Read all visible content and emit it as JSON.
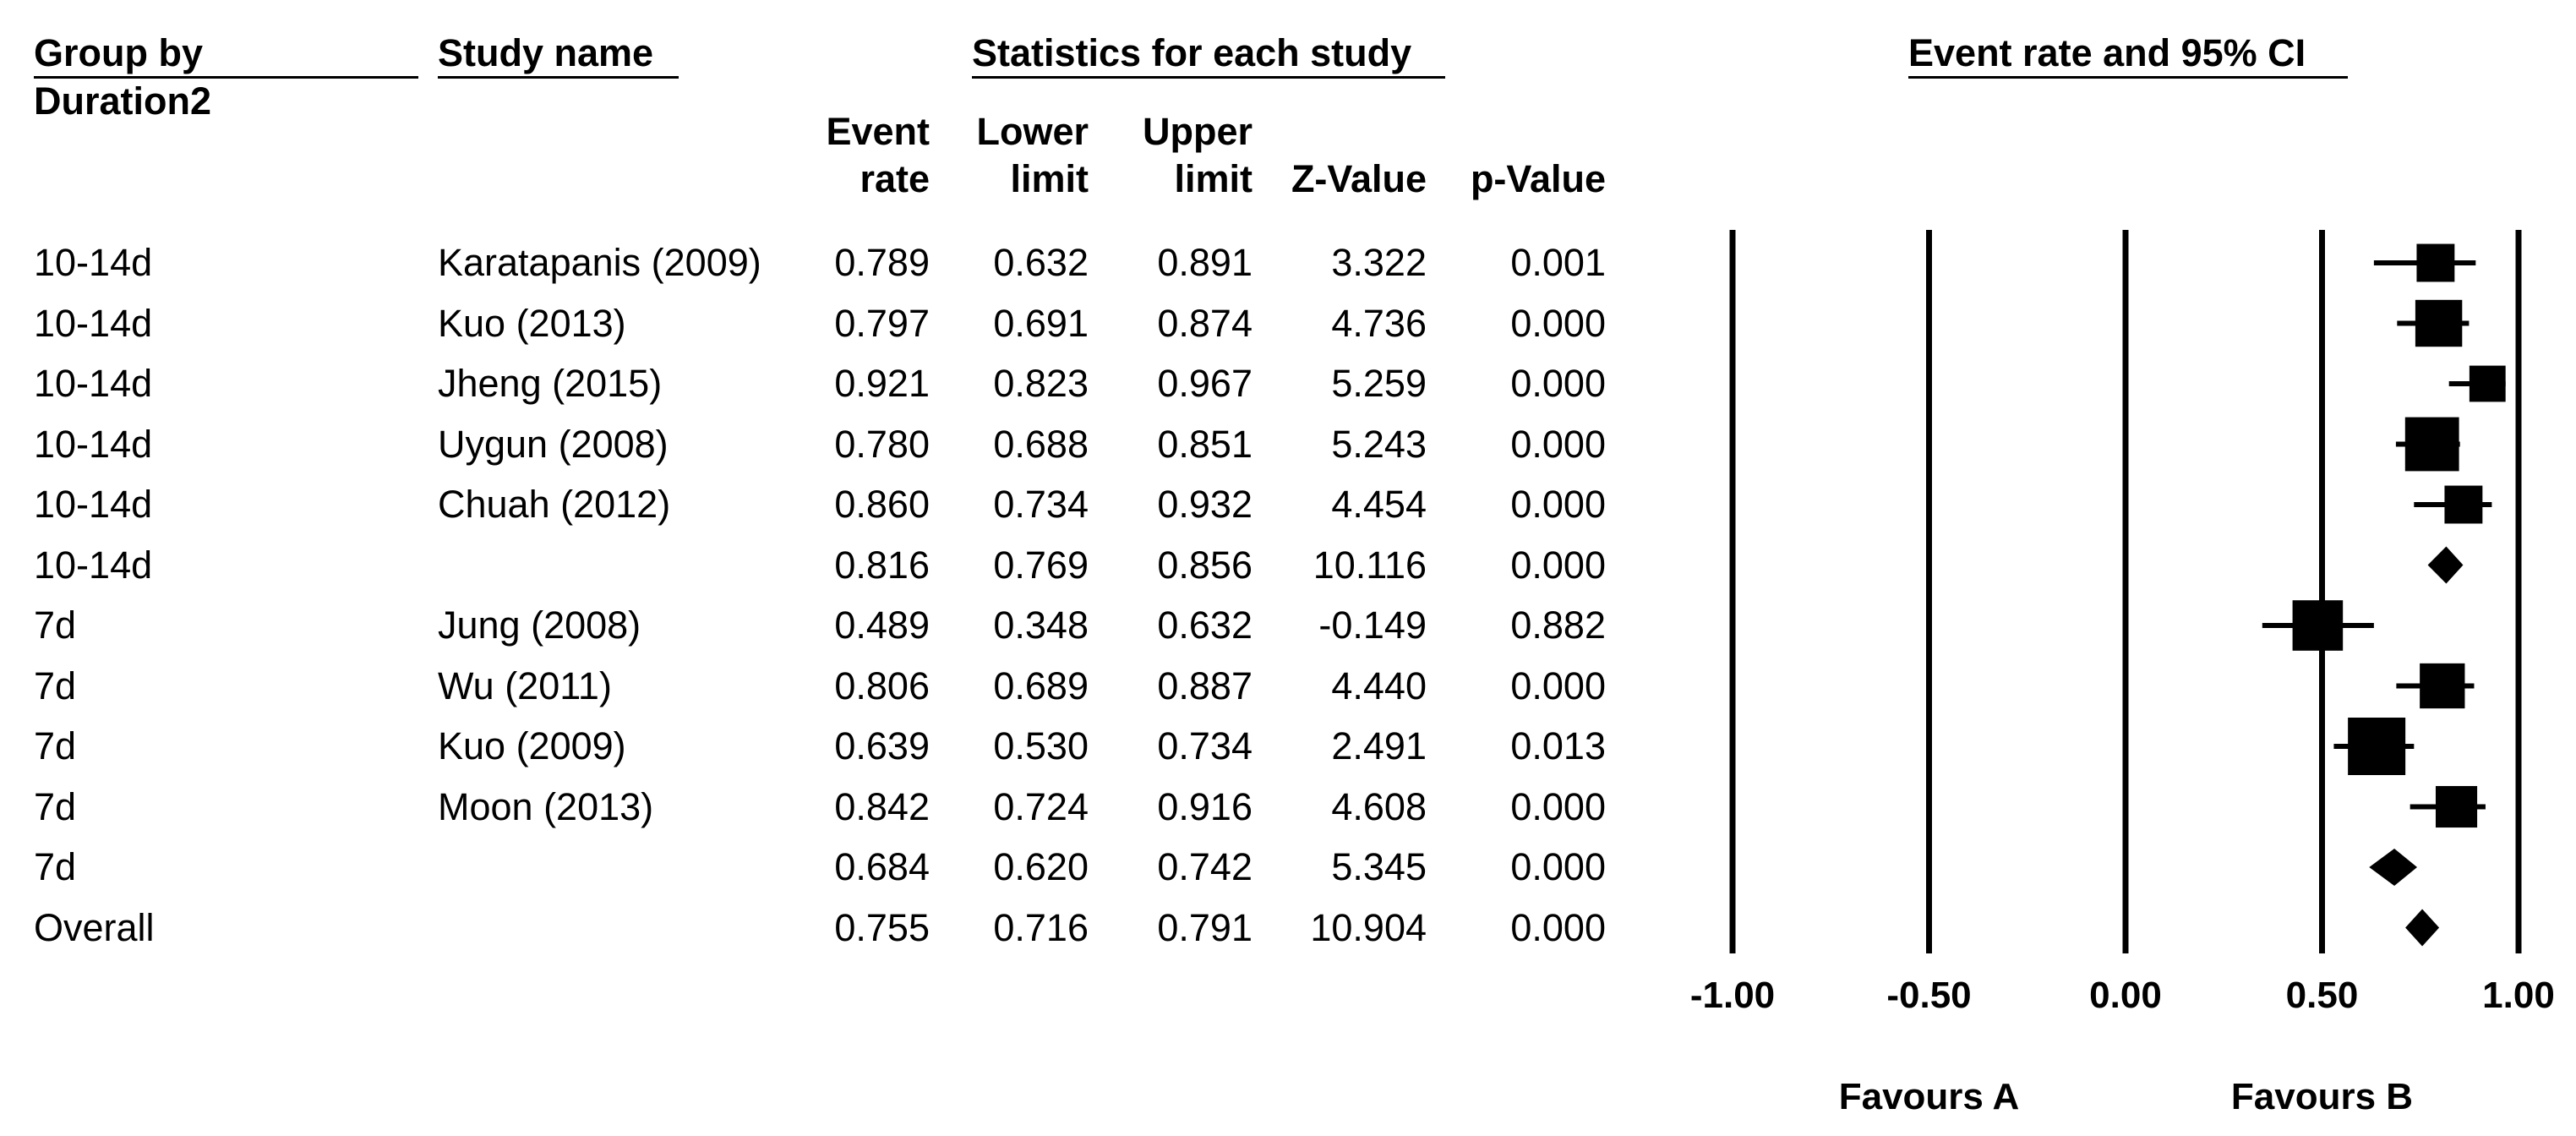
{
  "headers": {
    "group_by": "Group by",
    "group_var": "Duration2",
    "study_name": "Study name",
    "statistics": "Statistics for each study",
    "plot_title": "Event rate and 95% CI"
  },
  "columns": {
    "event_rate": [
      "Event",
      "rate"
    ],
    "lower_limit": [
      "Lower",
      "limit"
    ],
    "upper_limit": [
      "Upper",
      "limit"
    ],
    "z_value": [
      "",
      "Z-Value"
    ],
    "p_value": [
      "",
      "p-Value"
    ]
  },
  "rows": [
    {
      "group": "10-14d",
      "study": "Karatapanis (2009)",
      "event_rate": "0.789",
      "lower": "0.632",
      "upper": "0.891",
      "z": "3.322",
      "p": "0.001"
    },
    {
      "group": "10-14d",
      "study": "Kuo (2013)",
      "event_rate": "0.797",
      "lower": "0.691",
      "upper": "0.874",
      "z": "4.736",
      "p": "0.000"
    },
    {
      "group": "10-14d",
      "study": "Jheng (2015)",
      "event_rate": "0.921",
      "lower": "0.823",
      "upper": "0.967",
      "z": "5.259",
      "p": "0.000"
    },
    {
      "group": "10-14d",
      "study": "Uygun (2008)",
      "event_rate": "0.780",
      "lower": "0.688",
      "upper": "0.851",
      "z": "5.243",
      "p": "0.000"
    },
    {
      "group": "10-14d",
      "study": "Chuah (2012)",
      "event_rate": "0.860",
      "lower": "0.734",
      "upper": "0.932",
      "z": "4.454",
      "p": "0.000"
    },
    {
      "group": "10-14d",
      "study": "",
      "event_rate": "0.816",
      "lower": "0.769",
      "upper": "0.856",
      "z": "10.116",
      "p": "0.000"
    },
    {
      "group": "7d",
      "study": "Jung (2008)",
      "event_rate": "0.489",
      "lower": "0.348",
      "upper": "0.632",
      "z": "-0.149",
      "p": "0.882"
    },
    {
      "group": "7d",
      "study": "Wu (2011)",
      "event_rate": "0.806",
      "lower": "0.689",
      "upper": "0.887",
      "z": "4.440",
      "p": "0.000"
    },
    {
      "group": "7d",
      "study": "Kuo (2009)",
      "event_rate": "0.639",
      "lower": "0.530",
      "upper": "0.734",
      "z": "2.491",
      "p": "0.013"
    },
    {
      "group": "7d",
      "study": "Moon (2013)",
      "event_rate": "0.842",
      "lower": "0.724",
      "upper": "0.916",
      "z": "4.608",
      "p": "0.000"
    },
    {
      "group": "7d",
      "study": "",
      "event_rate": "0.684",
      "lower": "0.620",
      "upper": "0.742",
      "z": "5.345",
      "p": "0.000"
    },
    {
      "group": "Overall",
      "study": "",
      "event_rate": "0.755",
      "lower": "0.716",
      "upper": "0.791",
      "z": "10.904",
      "p": "0.000"
    }
  ],
  "chart_data": {
    "type": "forest",
    "title": "Event rate and 95% CI",
    "xlim": [
      -1.0,
      1.0
    ],
    "ticks": [
      -1.0,
      -0.5,
      0.0,
      0.5,
      1.0
    ],
    "tick_labels": [
      "-1.00",
      "-0.50",
      "0.00",
      "0.50",
      "1.00"
    ],
    "favours_left": "Favours A",
    "favours_right": "Favours B",
    "points": [
      {
        "est": 0.789,
        "lo": 0.632,
        "hi": 0.891,
        "marker": "square",
        "weight": 0.45
      },
      {
        "est": 0.797,
        "lo": 0.691,
        "hi": 0.874,
        "marker": "square",
        "weight": 0.7
      },
      {
        "est": 0.921,
        "lo": 0.823,
        "hi": 0.967,
        "marker": "square",
        "weight": 0.4
      },
      {
        "est": 0.78,
        "lo": 0.688,
        "hi": 0.851,
        "marker": "square",
        "weight": 0.9
      },
      {
        "est": 0.86,
        "lo": 0.734,
        "hi": 0.932,
        "marker": "square",
        "weight": 0.45
      },
      {
        "est": 0.816,
        "lo": 0.769,
        "hi": 0.856,
        "marker": "diamond"
      },
      {
        "est": 0.489,
        "lo": 0.348,
        "hi": 0.632,
        "marker": "square",
        "weight": 0.8
      },
      {
        "est": 0.806,
        "lo": 0.689,
        "hi": 0.887,
        "marker": "square",
        "weight": 0.65
      },
      {
        "est": 0.639,
        "lo": 0.53,
        "hi": 0.734,
        "marker": "square",
        "weight": 1.0
      },
      {
        "est": 0.842,
        "lo": 0.724,
        "hi": 0.916,
        "marker": "square",
        "weight": 0.55
      },
      {
        "est": 0.684,
        "lo": 0.62,
        "hi": 0.742,
        "marker": "diamond"
      },
      {
        "est": 0.755,
        "lo": 0.716,
        "hi": 0.791,
        "marker": "diamond"
      }
    ]
  }
}
